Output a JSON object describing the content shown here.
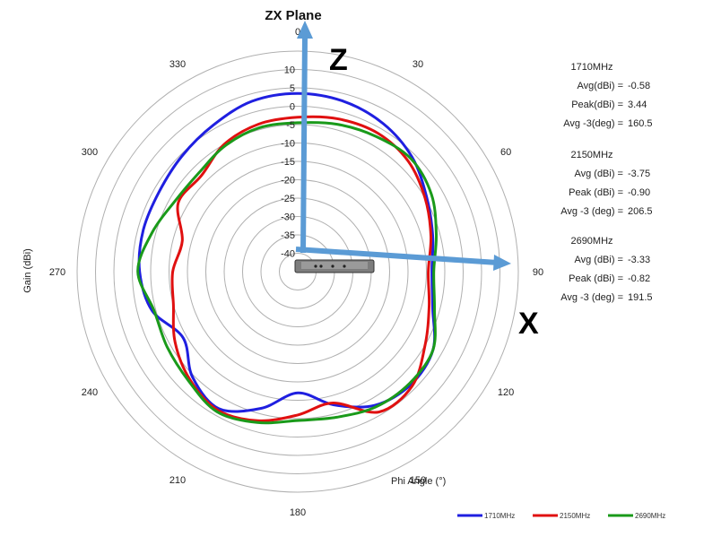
{
  "chart_data": {
    "type": "polar-line",
    "title": "ZX Plane",
    "radial_label": "Gain (dBi)",
    "angle_label": "Phi Angle (°)",
    "rlim": [
      -45,
      15
    ],
    "radial_ticks": [
      10,
      5,
      0,
      -5,
      -10,
      -15,
      -20,
      -25,
      -30,
      -35,
      -40
    ],
    "radial_tick_labels": [
      "10",
      "5",
      "0",
      "-5",
      "-10",
      "-15",
      "-20",
      "-25",
      "-30",
      "-35",
      "-40"
    ],
    "angle_ticks": [
      0,
      30,
      60,
      90,
      120,
      150,
      180,
      210,
      240,
      270,
      300,
      330
    ],
    "angle_tick_labels": [
      "0",
      "30",
      "60",
      "90",
      "120",
      "150",
      "180",
      "210",
      "240",
      "270",
      "300",
      "330"
    ],
    "axis_arrows": {
      "z": "Z",
      "x": "X"
    },
    "legend_position": "bottom-right",
    "series": [
      {
        "name": "1710MHz",
        "color": "#1f1fe0",
        "angles": [
          0,
          15,
          30,
          45,
          60,
          75,
          90,
          105,
          120,
          135,
          150,
          165,
          180,
          195,
          210,
          225,
          240,
          255,
          270,
          285,
          300,
          315,
          330,
          345
        ],
        "values": [
          3.5,
          3.0,
          1.5,
          -1.0,
          -4.5,
          -7.0,
          -8.5,
          -7.0,
          -2.5,
          -1.5,
          -3.0,
          -7.5,
          -12,
          -6.5,
          -2.0,
          -4.5,
          -9.0,
          -4.0,
          -2.0,
          -1.5,
          -1.5,
          -0.5,
          1.0,
          3.0
        ]
      },
      {
        "name": "2150MHz",
        "color": "#e01010",
        "angles": [
          0,
          15,
          30,
          45,
          60,
          75,
          90,
          105,
          120,
          135,
          150,
          165,
          180,
          195,
          210,
          225,
          240,
          255,
          270,
          285,
          300,
          315,
          330,
          345
        ],
        "values": [
          -3.0,
          -2.0,
          -1.5,
          -2.5,
          -5.0,
          -7.5,
          -9.5,
          -8.0,
          -5.0,
          -1.0,
          -0.9,
          -8.0,
          -6.0,
          -3.0,
          -1.5,
          -3.5,
          -6.5,
          -10.0,
          -11.0,
          -12.5,
          -7.5,
          -8.0,
          -5.0,
          -3.5
        ]
      },
      {
        "name": "2690MHz",
        "color": "#1a9a1a",
        "angles": [
          0,
          15,
          30,
          45,
          60,
          75,
          90,
          105,
          120,
          135,
          150,
          165,
          180,
          195,
          210,
          225,
          240,
          255,
          270,
          285,
          300,
          315,
          330,
          345
        ],
        "values": [
          -4.5,
          -3.5,
          -2.5,
          -1.5,
          -3.0,
          -6.0,
          -8.0,
          -6.5,
          -2.5,
          -2.0,
          -2.5,
          -4.0,
          -4.5,
          -2.5,
          -1.0,
          -3.0,
          -4.0,
          -4.5,
          -1.5,
          -4.0,
          -6.5,
          -7.0,
          -5.5,
          -4.5
        ]
      }
    ]
  },
  "stats": [
    {
      "freq": "1710MHz",
      "lines": [
        [
          "Avg(dBi) =",
          "-0.58"
        ],
        [
          "Peak(dBi) =",
          "3.44"
        ],
        [
          "Avg -3(deg) =",
          "160.5"
        ]
      ]
    },
    {
      "freq": "2150MHz",
      "lines": [
        [
          "Avg (dBi) =",
          "-3.75"
        ],
        [
          "Peak (dBi) =",
          "-0.90"
        ],
        [
          "Avg -3 (deg) =",
          "206.5"
        ]
      ]
    },
    {
      "freq": "2690MHz",
      "lines": [
        [
          "Avg (dBi) =",
          "-3.33"
        ],
        [
          "Peak (dBi) =",
          "-0.82"
        ],
        [
          "Avg -3 (deg) =",
          "191.5"
        ]
      ]
    }
  ],
  "legend": [
    {
      "label": "1710MHz",
      "color": "#1f1fe0"
    },
    {
      "label": "2150MHz",
      "color": "#e01010"
    },
    {
      "label": "2690MHz",
      "color": "#1a9a1a"
    }
  ],
  "colors": {
    "axis_arrow": "#5b9bd5",
    "grid": "#b0b0b0"
  }
}
